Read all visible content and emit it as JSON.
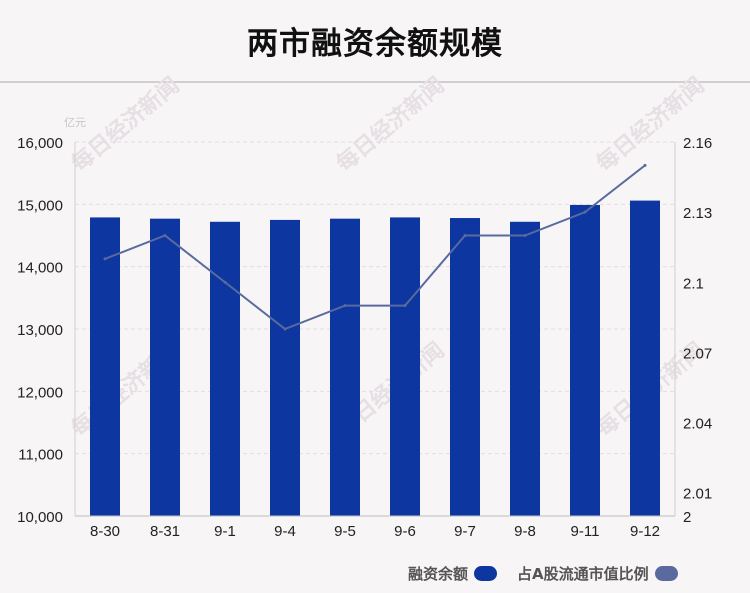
{
  "title": "两市融资余额规模",
  "watermark_text": "每日经济新闻",
  "chart_data": {
    "type": "bar",
    "title": "两市融资余额规模",
    "categories": [
      "8-30",
      "8-31",
      "9-1",
      "9-4",
      "9-5",
      "9-6",
      "9-7",
      "9-8",
      "9-11",
      "9-12"
    ],
    "y_left": {
      "unit": "亿元",
      "ylim": [
        10000,
        16000
      ],
      "ticks": [
        "10,000",
        "11,000",
        "12,000",
        "13,000",
        "14,000",
        "15,000",
        "16,000"
      ],
      "tick_values": [
        10000,
        11000,
        12000,
        13000,
        14000,
        15000,
        16000
      ]
    },
    "y_right": {
      "ylim": [
        2.0,
        2.16
      ],
      "ticks": [
        "2",
        "2.01",
        "2.04",
        "2.07",
        "2.1",
        "2.13",
        "2.16"
      ],
      "tick_values": [
        2.0,
        2.01,
        2.04,
        2.07,
        2.1,
        2.13,
        2.16
      ]
    },
    "series": [
      {
        "name": "融资余额",
        "type": "bar",
        "axis": "left",
        "color": "#0d36a0",
        "values": [
          14790,
          14770,
          14720,
          14750,
          14770,
          14790,
          14780,
          14720,
          14990,
          15060
        ]
      },
      {
        "name": "占A股流通市值比例",
        "type": "line",
        "axis": "right",
        "color": "#5a6a9e",
        "values": [
          2.11,
          2.12,
          2.1,
          2.08,
          2.09,
          2.09,
          2.12,
          2.12,
          2.13,
          2.15
        ]
      }
    ],
    "grid": true
  }
}
